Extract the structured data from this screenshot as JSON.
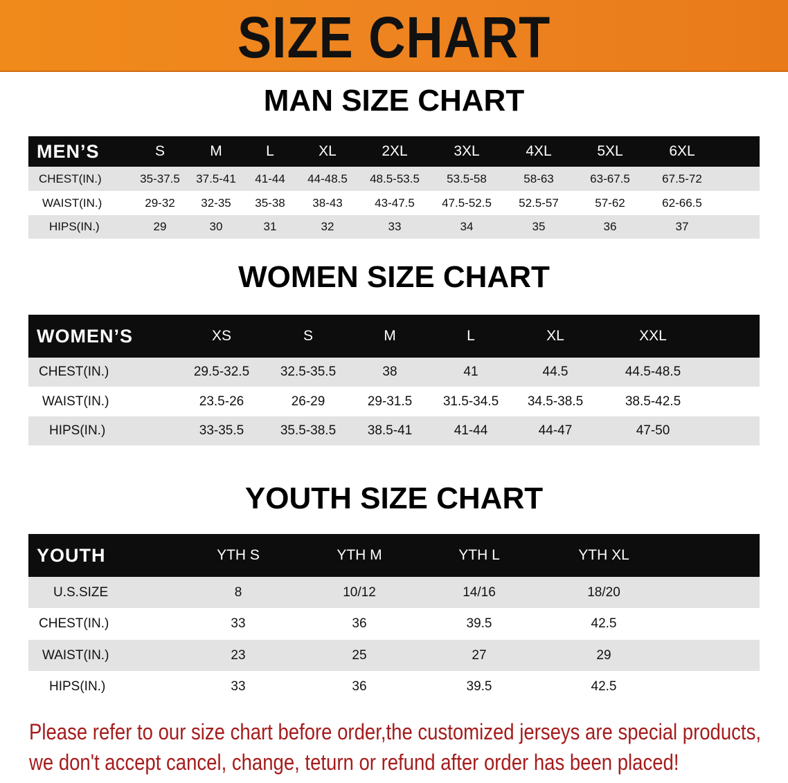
{
  "banner_title": "SIZE CHART",
  "men": {
    "title": "MAN SIZE CHART",
    "header": "MEN’S",
    "sizes": [
      "S",
      "M",
      "L",
      "XL",
      "2XL",
      "3XL",
      "4XL",
      "5XL",
      "6XL"
    ],
    "rows": [
      {
        "label": "CHEST(IN.)",
        "values": [
          "35-37.5",
          "37.5-41",
          "41-44",
          "44-48.5",
          "48.5-53.5",
          "53.5-58",
          "58-63",
          "63-67.5",
          "67.5-72"
        ]
      },
      {
        "label": "WAIST(IN.)",
        "values": [
          "29-32",
          "32-35",
          "35-38",
          "38-43",
          "43-47.5",
          "47.5-52.5",
          "52.5-57",
          "57-62",
          "62-66.5"
        ]
      },
      {
        "label": "HIPS(IN.)",
        "values": [
          "29",
          "30",
          "31",
          "32",
          "33",
          "34",
          "35",
          "36",
          "37"
        ]
      }
    ]
  },
  "women": {
    "title": "WOMEN SIZE CHART",
    "header": "WOMEN’S",
    "sizes": [
      "XS",
      "S",
      "M",
      "L",
      "XL",
      "XXL"
    ],
    "rows": [
      {
        "label": "CHEST(IN.)",
        "values": [
          "29.5-32.5",
          "32.5-35.5",
          "38",
          "41",
          "44.5",
          "44.5-48.5"
        ]
      },
      {
        "label": "WAIST(IN.)",
        "values": [
          "23.5-26",
          "26-29",
          "29-31.5",
          "31.5-34.5",
          "34.5-38.5",
          "38.5-42.5"
        ]
      },
      {
        "label": "HIPS(IN.)",
        "values": [
          "33-35.5",
          "35.5-38.5",
          "38.5-41",
          "41-44",
          "44-47",
          "47-50"
        ]
      }
    ]
  },
  "youth": {
    "title": "YOUTH SIZE CHART",
    "header": "YOUTH",
    "sizes": [
      "YTH S",
      "YTH M",
      "YTH L",
      "YTH XL"
    ],
    "rows": [
      {
        "label": "U.S.SIZE",
        "values": [
          "8",
          "10/12",
          "14/16",
          "18/20"
        ]
      },
      {
        "label": "CHEST(IN.)",
        "values": [
          "33",
          "36",
          "39.5",
          "42.5"
        ]
      },
      {
        "label": "WAIST(IN.)",
        "values": [
          "23",
          "25",
          "27",
          "29"
        ]
      },
      {
        "label": "HIPS(IN.)",
        "values": [
          "33",
          "36",
          "39.5",
          "42.5"
        ]
      }
    ]
  },
  "note": [
    "Please refer to our size chart before order,the customized jerseys are special products,",
    "we don't accept cancel, change, teturn or refund after order has been placed!"
  ]
}
